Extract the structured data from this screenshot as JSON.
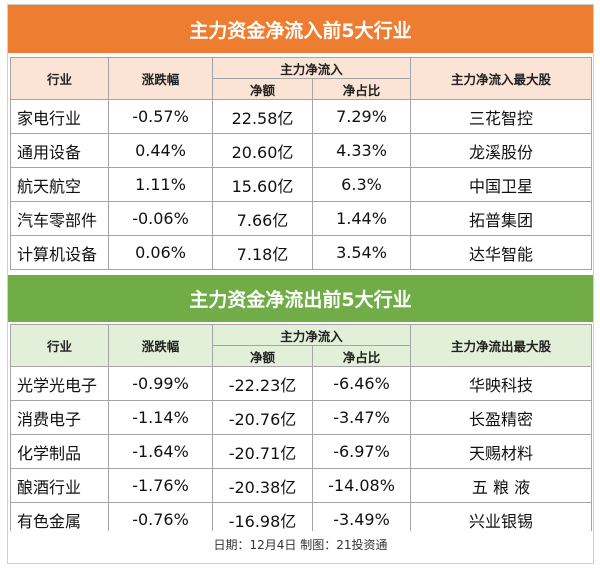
{
  "inflow": {
    "title": "主力资金净流入前5大行业",
    "headers": {
      "industry": "行业",
      "change": "涨跌幅",
      "group": "主力净流入",
      "net": "净额",
      "ratio": "净占比",
      "top_stock": "主力净流入最大股"
    },
    "rows": [
      {
        "industry": "家电行业",
        "change": "-0.57%",
        "net": "22.58亿",
        "ratio": "7.29%",
        "top_stock": "三花智控"
      },
      {
        "industry": "通用设备",
        "change": "0.44%",
        "net": "20.60亿",
        "ratio": "4.33%",
        "top_stock": "龙溪股份"
      },
      {
        "industry": "航天航空",
        "change": "1.11%",
        "net": "15.60亿",
        "ratio": "6.3%",
        "top_stock": "中国卫星"
      },
      {
        "industry": "汽车零部件",
        "change": "-0.06%",
        "net": "7.66亿",
        "ratio": "1.44%",
        "top_stock": "拓普集团"
      },
      {
        "industry": "计算机设备",
        "change": "0.06%",
        "net": "7.18亿",
        "ratio": "3.54%",
        "top_stock": "达华智能"
      }
    ]
  },
  "outflow": {
    "title": "主力资金净流出前5大行业",
    "headers": {
      "industry": "行业",
      "change": "涨跌幅",
      "group": "主力净流入",
      "net": "净额",
      "ratio": "净占比",
      "top_stock": "主力净流出最大股"
    },
    "rows": [
      {
        "industry": "光学光电子",
        "change": "-0.99%",
        "net": "-22.23亿",
        "ratio": "-6.46%",
        "top_stock": "华映科技"
      },
      {
        "industry": "消费电子",
        "change": "-1.14%",
        "net": "-20.76亿",
        "ratio": "-3.47%",
        "top_stock": "长盈精密"
      },
      {
        "industry": "化学制品",
        "change": "-1.64%",
        "net": "-20.71亿",
        "ratio": "-6.97%",
        "top_stock": "天赐材料"
      },
      {
        "industry": "酿酒行业",
        "change": "-1.76%",
        "net": "-20.38亿",
        "ratio": "-14.08%",
        "top_stock": "五 粮 液"
      },
      {
        "industry": "有色金属",
        "change": "-0.76%",
        "net": "-16.98亿",
        "ratio": "-3.49%",
        "top_stock": "兴业银锡"
      }
    ]
  },
  "footer": "日期：12月4日 制图：21投资通",
  "colors": {
    "inflow_bar": "#ed7d31",
    "inflow_header": "#fbe4d5",
    "outflow_bar": "#70ad47",
    "outflow_header": "#e2efd9"
  }
}
